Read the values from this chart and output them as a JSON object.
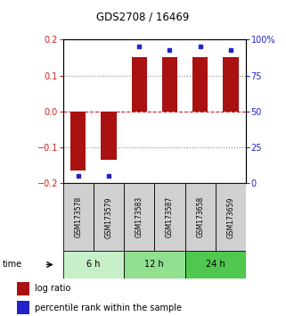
{
  "title": "GDS2708 / 16469",
  "samples": [
    "GSM173578",
    "GSM173579",
    "GSM173583",
    "GSM173587",
    "GSM173658",
    "GSM173659"
  ],
  "log_ratios": [
    -0.165,
    -0.135,
    0.152,
    0.152,
    0.15,
    0.152
  ],
  "percentile_ranks": [
    5,
    5,
    95,
    93,
    95,
    93
  ],
  "time_groups": [
    {
      "label": "6 h",
      "start": 0,
      "end": 2,
      "color": "#c8f0c8"
    },
    {
      "label": "12 h",
      "start": 2,
      "end": 4,
      "color": "#90e090"
    },
    {
      "label": "24 h",
      "start": 4,
      "end": 6,
      "color": "#50c850"
    }
  ],
  "bar_color": "#aa1111",
  "dot_color": "#2222cc",
  "ylim": [
    -0.2,
    0.2
  ],
  "yticks": [
    -0.2,
    -0.1,
    0,
    0.1,
    0.2
  ],
  "y2ticks": [
    0,
    25,
    50,
    75,
    100
  ],
  "y2labels": [
    "0",
    "25",
    "50",
    "75",
    "100%"
  ],
  "left_axis_color": "#cc2222",
  "right_axis_color": "#2222cc",
  "dotted_line_color": "#888888",
  "zero_dashed_color": "#cc2222",
  "bg_color": "#ffffff",
  "plot_bg_color": "#ffffff",
  "legend_log_ratio_color": "#aa1111",
  "legend_percentile_color": "#2222cc",
  "legend_log_ratio_label": "log ratio",
  "legend_percentile_label": "percentile rank within the sample",
  "bar_width": 0.5,
  "sample_cell_color": "#d0d0d0"
}
